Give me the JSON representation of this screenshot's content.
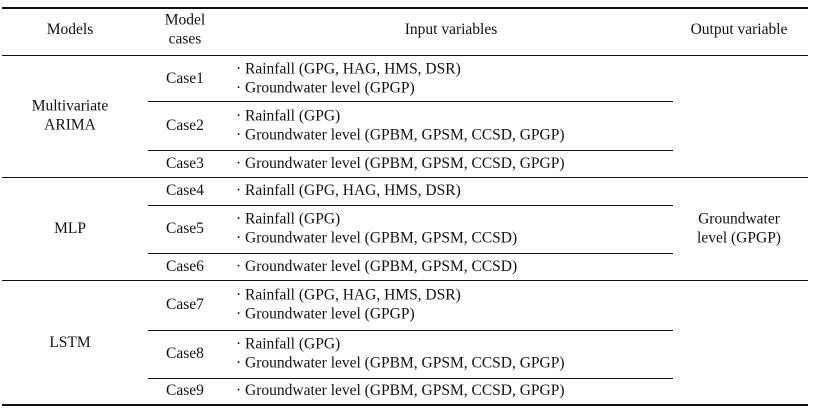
{
  "table": {
    "headers": {
      "models": "Models",
      "cases": [
        "Model",
        "cases"
      ],
      "inputs": "Input variables",
      "output": "Output variable"
    },
    "model_groups": [
      {
        "name": [
          "Multivariate",
          "ARIMA"
        ]
      },
      {
        "name": [
          "MLP"
        ]
      },
      {
        "name": [
          "LSTM"
        ]
      }
    ],
    "rows": [
      {
        "case": "Case1",
        "inputs": [
          "· Rainfall (GPG, HAG, HMS, DSR)",
          "· Groundwater level (GPGP)"
        ]
      },
      {
        "case": "Case2",
        "inputs": [
          "· Rainfall (GPG)",
          "· Groundwater level (GPBM, GPSM, CCSD, GPGP)"
        ]
      },
      {
        "case": "Case3",
        "inputs": [
          "· Groundwater level (GPBM, GPSM, CCSD, GPGP)"
        ]
      },
      {
        "case": "Case4",
        "inputs": [
          "· Rainfall (GPG, HAG, HMS, DSR)"
        ]
      },
      {
        "case": "Case5",
        "inputs": [
          "· Rainfall (GPG)",
          "· Groundwater level (GPBM, GPSM, CCSD)"
        ]
      },
      {
        "case": "Case6",
        "inputs": [
          "· Groundwater level (GPBM, GPSM, CCSD)"
        ]
      },
      {
        "case": "Case7",
        "inputs": [
          "· Rainfall (GPG, HAG, HMS, DSR)",
          "· Groundwater level (GPGP)"
        ]
      },
      {
        "case": "Case8",
        "inputs": [
          "· Rainfall (GPG)",
          "· Groundwater level (GPBM, GPSM, CCSD, GPGP)"
        ]
      },
      {
        "case": "Case9",
        "inputs": [
          "· Groundwater level (GPBM, GPSM, CCSD, GPGP)"
        ]
      }
    ],
    "output_value": [
      "Groundwater",
      "level (GPGP)"
    ]
  }
}
